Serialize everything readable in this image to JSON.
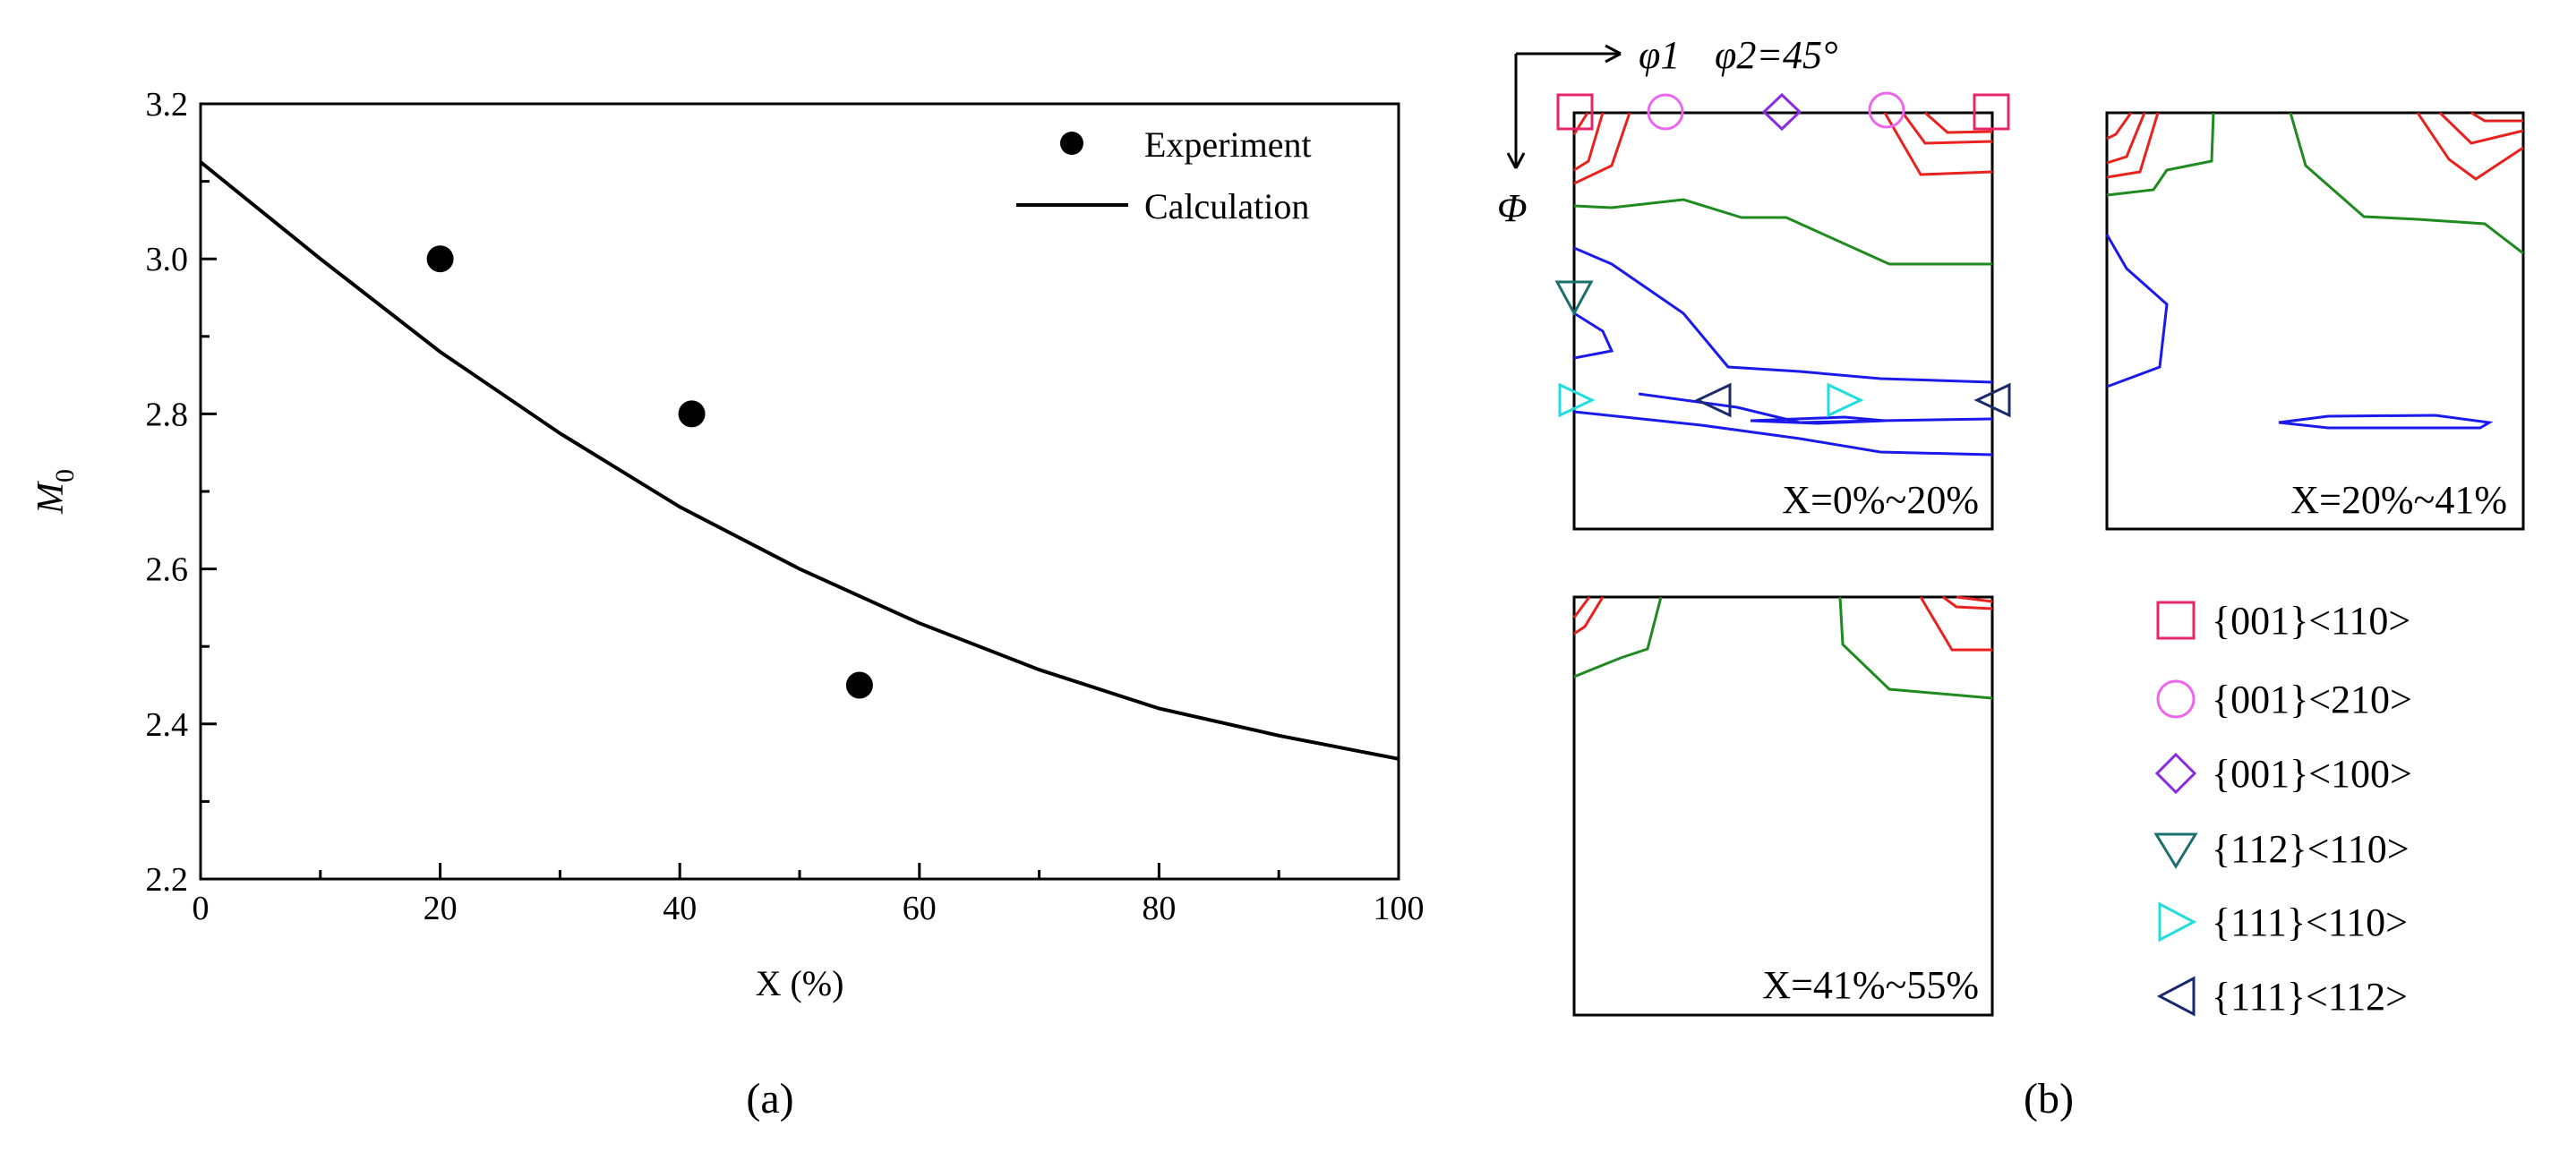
{
  "chart_data": [
    {
      "type": "scatter+line",
      "panel_label": "(a)",
      "xlabel": "X (%)",
      "ylabel": "M",
      "ylabel_sub": "0",
      "xlim": [
        0,
        100
      ],
      "ylim": [
        2.2,
        3.2
      ],
      "xticks": [
        0,
        20,
        40,
        60,
        80,
        100
      ],
      "yticks": [
        2.2,
        2.4,
        2.6,
        2.8,
        3.0,
        3.2
      ],
      "x_minor_step": 10,
      "y_minor_step": 0.1,
      "grid": false,
      "legend_position": "top-right",
      "series": [
        {
          "name": "Experiment",
          "kind": "scatter",
          "color": "#000000",
          "points": [
            [
              20,
              3.0
            ],
            [
              41,
              2.8
            ],
            [
              55,
              2.45
            ]
          ]
        },
        {
          "name": "Calculation",
          "kind": "line",
          "color": "#000000",
          "points": [
            [
              0,
              3.125
            ],
            [
              10,
              3.0
            ],
            [
              20,
              2.88
            ],
            [
              30,
              2.775
            ],
            [
              40,
              2.68
            ],
            [
              50,
              2.6
            ],
            [
              60,
              2.53
            ],
            [
              70,
              2.47
            ],
            [
              80,
              2.42
            ],
            [
              90,
              2.385
            ],
            [
              100,
              2.355
            ]
          ]
        }
      ]
    },
    {
      "type": "odf-sections",
      "panel_label": "(b)",
      "section_label": "φ2=45°",
      "axis_labels": {
        "phi1": "φ1",
        "Phi": "Φ"
      },
      "contour_colors": {
        "high": "#e8231f",
        "mid": "#1f8a1f",
        "low": "#1a1aeb"
      },
      "panels": [
        {
          "label": "X=0%~20%"
        },
        {
          "label": "X=20%~41%"
        },
        {
          "label": "X=41%~55%"
        }
      ],
      "legend": [
        {
          "label": "{001}<110>",
          "marker": "square",
          "color": "#e8256a"
        },
        {
          "label": "{001}<210>",
          "marker": "circle",
          "color": "#ee66ee"
        },
        {
          "label": "{001}<100>",
          "marker": "diamond",
          "color": "#8a2be2"
        },
        {
          "label": "{112}<110>",
          "marker": "triangle-down",
          "color": "#1d6f6f"
        },
        {
          "label": "{111}<110>",
          "marker": "triangle-right",
          "color": "#22dddd"
        },
        {
          "label": "{111}<112>",
          "marker": "triangle-left",
          "color": "#1a2a6b"
        }
      ]
    }
  ]
}
